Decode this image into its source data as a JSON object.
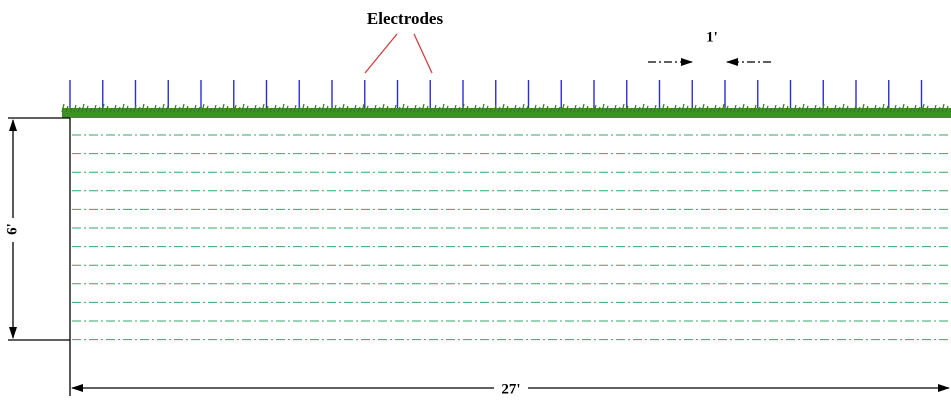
{
  "labels": {
    "electrodes": "Electrodes",
    "spacing": "1'",
    "depth": "6'",
    "length": "27'"
  }
}
